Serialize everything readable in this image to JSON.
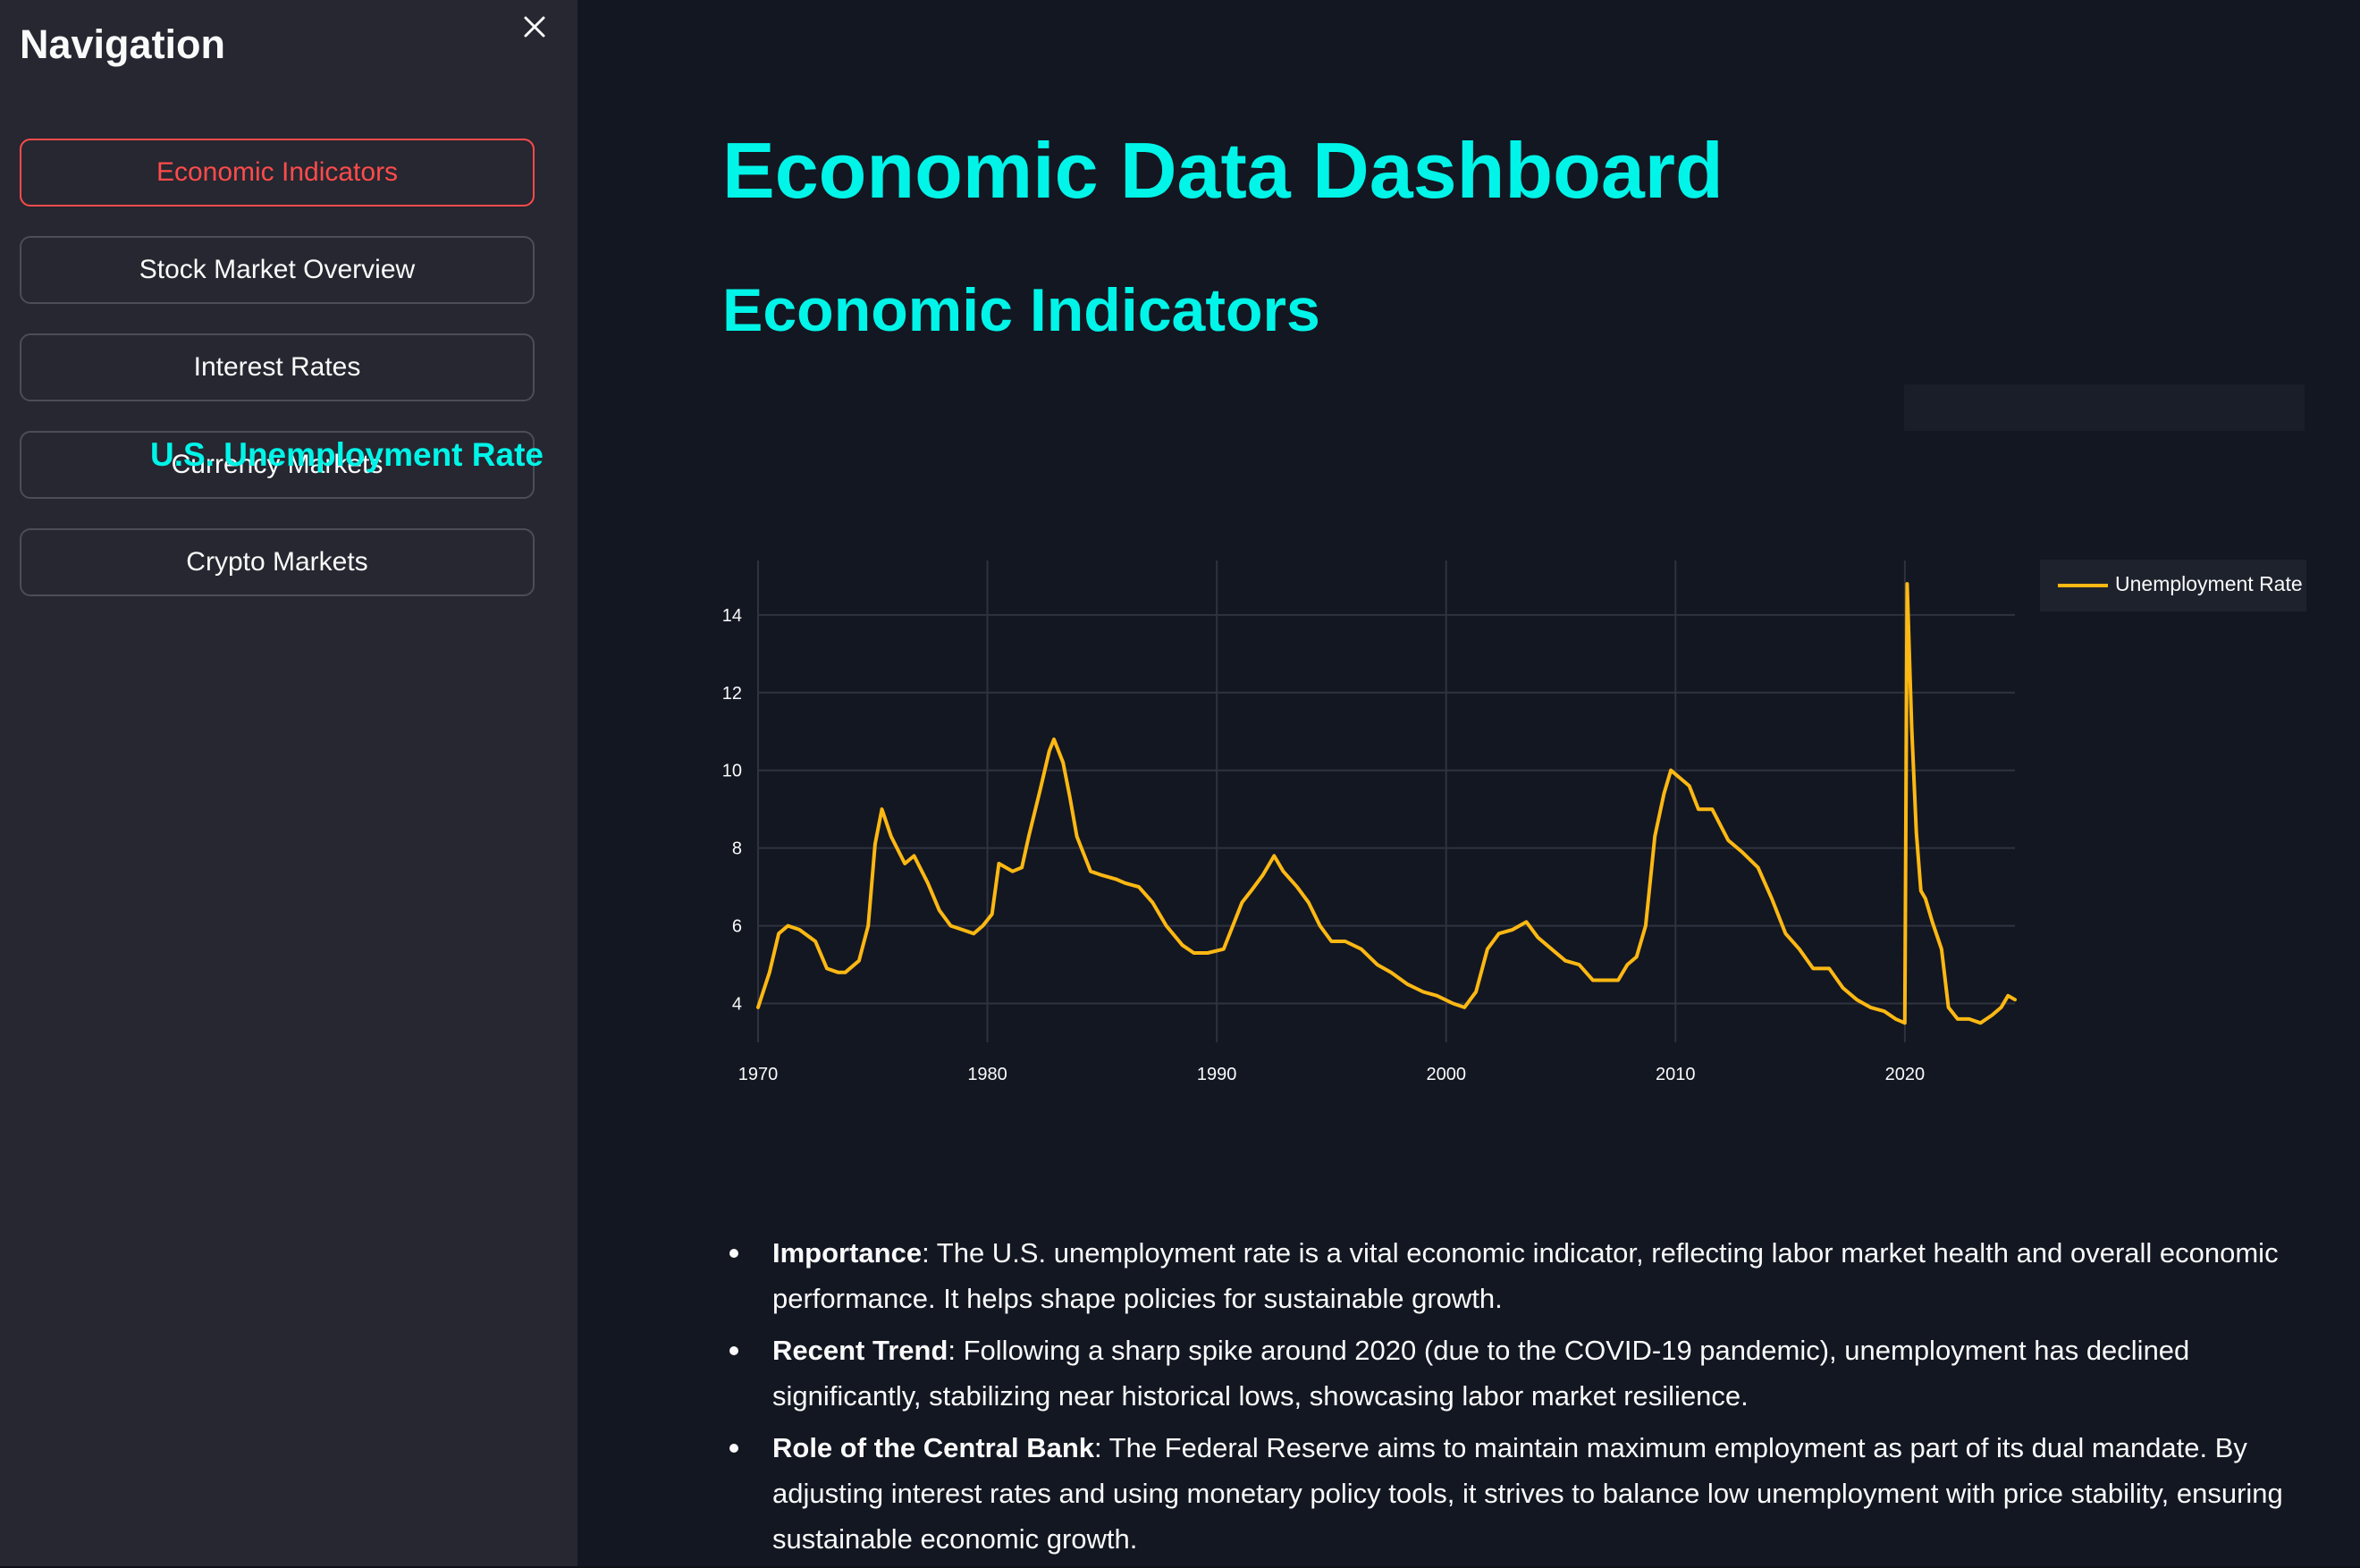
{
  "sidebar": {
    "title": "Navigation",
    "close_icon": "close-icon",
    "items": [
      {
        "label": "Economic Indicators",
        "active": true
      },
      {
        "label": "Stock Market Overview",
        "active": false
      },
      {
        "label": "Interest Rates",
        "active": false
      },
      {
        "label": "Currency Markets",
        "active": false
      },
      {
        "label": "Crypto Markets",
        "active": false
      }
    ]
  },
  "main": {
    "title": "Economic Data Dashboard",
    "section": "Economic Indicators"
  },
  "colors": {
    "accent": "#00f5e8",
    "active_nav": "#ff4b4b",
    "line": "#fdb813",
    "sidebar_bg": "#262730",
    "main_bg": "#131722"
  },
  "chart_data": {
    "type": "line",
    "title": "U.S. Unemployment Rate",
    "xlabel": "",
    "ylabel": "",
    "xlim": [
      1970,
      2024.8
    ],
    "ylim": [
      3,
      15.4
    ],
    "x_ticks": [
      1970,
      1980,
      1990,
      2000,
      2010,
      2020
    ],
    "y_ticks": [
      4,
      6,
      8,
      10,
      12,
      14
    ],
    "grid": true,
    "legend": "top-right",
    "series": [
      {
        "name": "Unemployment Rate",
        "color": "#fdb813",
        "x": [
          1970.0,
          1970.5,
          1970.9,
          1971.3,
          1971.8,
          1972.5,
          1973.0,
          1973.5,
          1973.8,
          1974.4,
          1974.8,
          1975.1,
          1975.4,
          1975.8,
          1976.4,
          1976.8,
          1977.4,
          1977.9,
          1978.4,
          1978.9,
          1979.4,
          1979.8,
          1980.2,
          1980.5,
          1980.8,
          1981.1,
          1981.5,
          1981.8,
          1982.3,
          1982.7,
          1982.9,
          1983.3,
          1983.6,
          1983.9,
          1984.5,
          1985.0,
          1985.6,
          1986.0,
          1986.6,
          1987.2,
          1987.8,
          1988.5,
          1989.0,
          1989.6,
          1990.3,
          1990.7,
          1991.1,
          1991.5,
          1992.0,
          1992.5,
          1992.9,
          1993.5,
          1994.0,
          1994.5,
          1995.0,
          1995.6,
          1996.3,
          1997.0,
          1997.6,
          1998.3,
          1999.0,
          1999.6,
          2000.3,
          2000.8,
          2001.3,
          2001.8,
          2002.3,
          2002.9,
          2003.5,
          2004.0,
          2004.6,
          2005.2,
          2005.8,
          2006.4,
          2007.0,
          2007.5,
          2007.9,
          2008.3,
          2008.7,
          2009.1,
          2009.5,
          2009.8,
          2010.2,
          2010.6,
          2011.0,
          2011.6,
          2012.3,
          2012.9,
          2013.6,
          2014.2,
          2014.8,
          2015.4,
          2016.0,
          2016.7,
          2017.3,
          2017.9,
          2018.5,
          2019.1,
          2019.6,
          2020.0,
          2020.1,
          2020.3,
          2020.5,
          2020.7,
          2020.9,
          2021.2,
          2021.6,
          2021.9,
          2022.3,
          2022.8,
          2023.3,
          2023.8,
          2024.2,
          2024.5,
          2024.8
        ],
        "y": [
          3.9,
          4.8,
          5.8,
          6.0,
          5.9,
          5.6,
          4.9,
          4.8,
          4.8,
          5.1,
          6.0,
          8.1,
          9.0,
          8.3,
          7.6,
          7.8,
          7.1,
          6.4,
          6.0,
          5.9,
          5.8,
          6.0,
          6.3,
          7.6,
          7.5,
          7.4,
          7.5,
          8.3,
          9.5,
          10.5,
          10.8,
          10.2,
          9.3,
          8.3,
          7.4,
          7.3,
          7.2,
          7.1,
          7.0,
          6.6,
          6.0,
          5.5,
          5.3,
          5.3,
          5.4,
          6.0,
          6.6,
          6.9,
          7.3,
          7.8,
          7.4,
          7.0,
          6.6,
          6.0,
          5.6,
          5.6,
          5.4,
          5.0,
          4.8,
          4.5,
          4.3,
          4.2,
          4.0,
          3.9,
          4.3,
          5.4,
          5.8,
          5.9,
          6.1,
          5.7,
          5.4,
          5.1,
          5.0,
          4.6,
          4.6,
          4.6,
          5.0,
          5.2,
          6.0,
          8.3,
          9.4,
          10.0,
          9.8,
          9.6,
          9.0,
          9.0,
          8.2,
          7.9,
          7.5,
          6.7,
          5.8,
          5.4,
          4.9,
          4.9,
          4.4,
          4.1,
          3.9,
          3.8,
          3.6,
          3.5,
          14.8,
          11.1,
          8.4,
          6.9,
          6.7,
          6.1,
          5.4,
          3.9,
          3.6,
          3.6,
          3.5,
          3.7,
          3.9,
          4.2,
          4.1
        ]
      }
    ]
  },
  "notes": [
    {
      "term": "Importance",
      "text": ": The U.S. unemployment rate is a vital economic indicator, reflecting labor market health and overall economic performance. It helps shape policies for sustainable growth."
    },
    {
      "term": "Recent Trend",
      "text": ": Following a sharp spike around 2020 (due to the COVID-19 pandemic), unemployment has declined significantly, stabilizing near historical lows, showcasing labor market resilience."
    },
    {
      "term": "Role of the Central Bank",
      "text": ": The Federal Reserve aims to maintain maximum employment as part of its dual mandate. By adjusting interest rates and using monetary policy tools, it strives to balance low unemployment with price stability, ensuring sustainable economic growth."
    }
  ]
}
